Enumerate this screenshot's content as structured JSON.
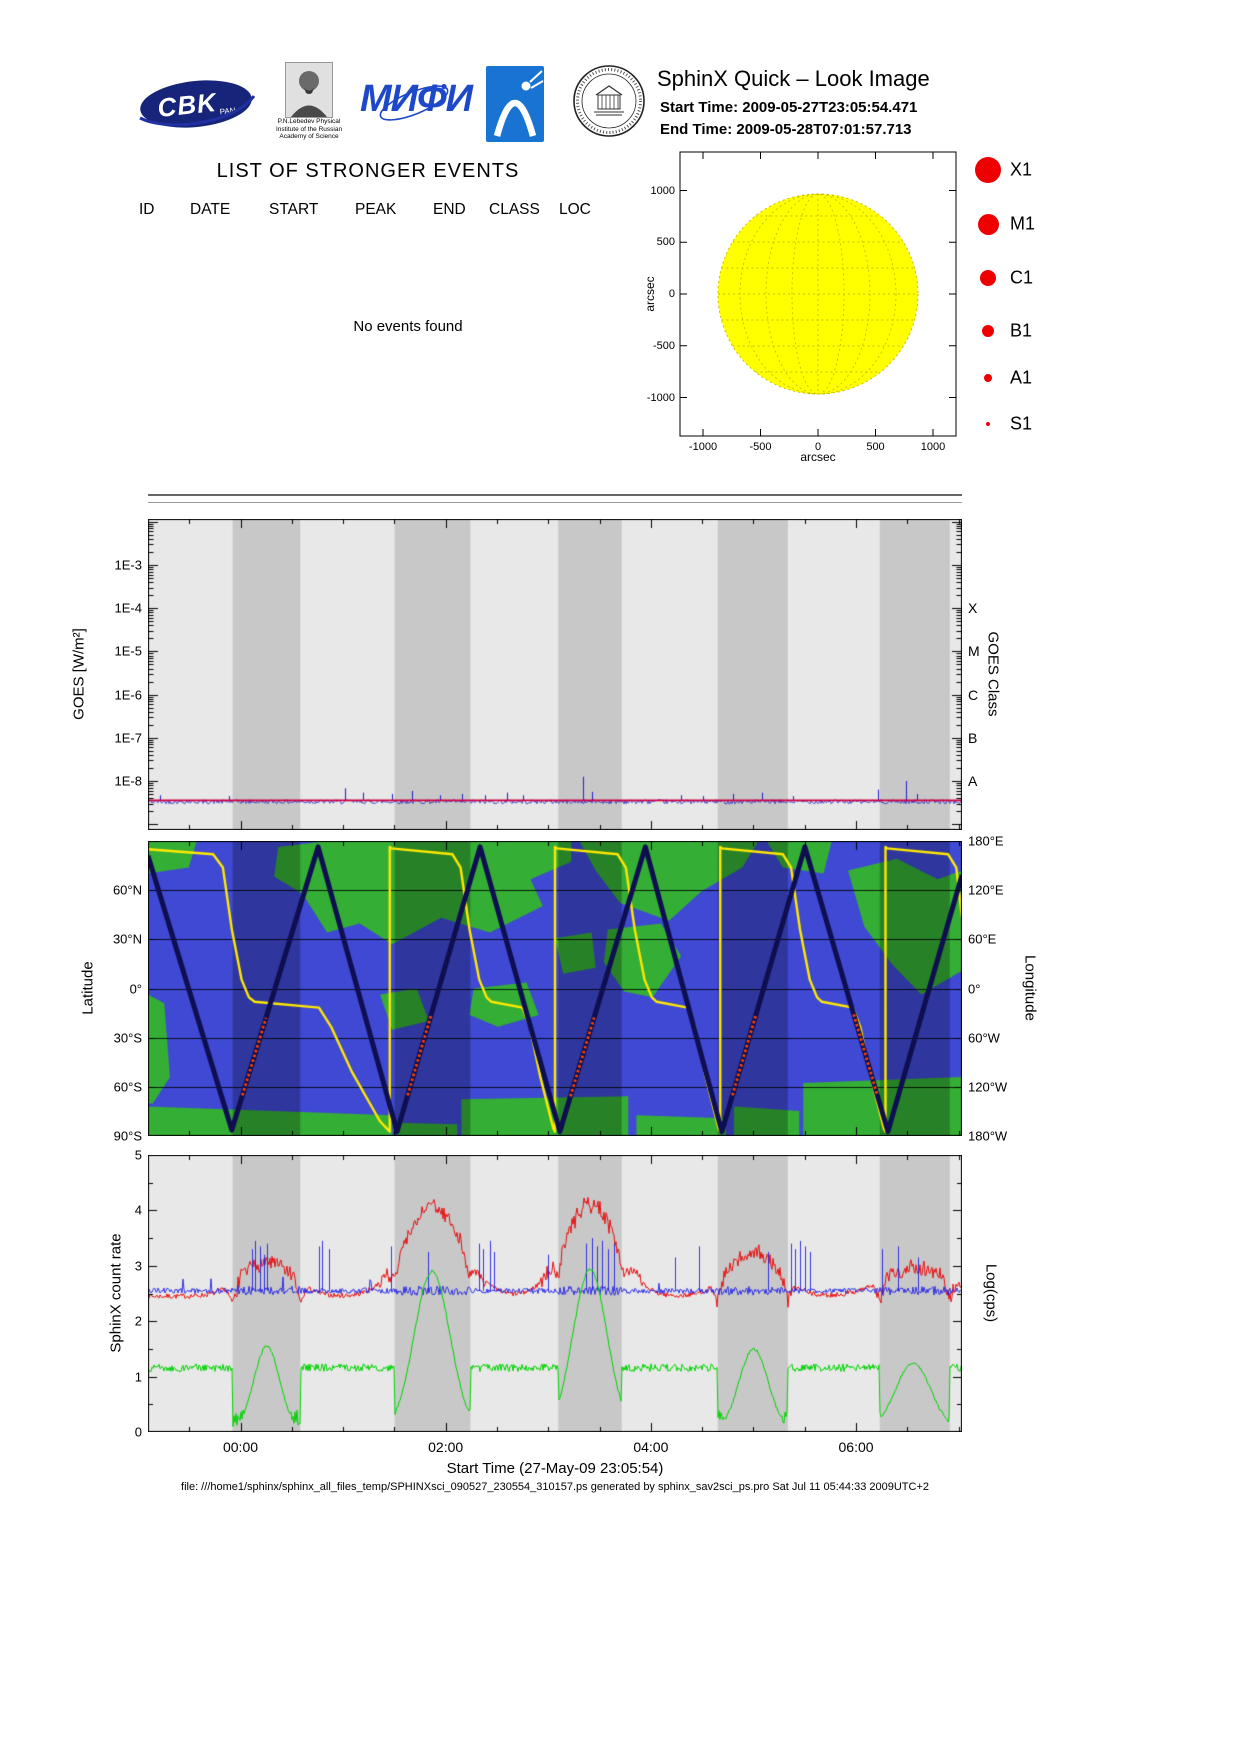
{
  "header": {
    "title": "SphinX Quick – Look Image",
    "start_time": "Start Time: 2009-05-27T23:05:54.471",
    "end_time": "End Time: 2009-05-28T07:01:57.713",
    "logos": {
      "cbk_text": "CBK",
      "cbk_sub": "PAN",
      "lebedev_caption": [
        "P.N.Lebedev Physical",
        "Institute of the Russian",
        "Academy of Science"
      ],
      "mephi_text": "МИФИ"
    }
  },
  "events": {
    "title": "LIST OF STRONGER EVENTS",
    "columns": [
      "ID",
      "DATE",
      "START",
      "PEAK",
      "END",
      "CLASS",
      "LOC"
    ],
    "empty_message": "No events found"
  },
  "sun_plot": {
    "xlabel": "arcsec",
    "ylabel": "arcsec",
    "xticks": [
      "-1000",
      "-500",
      "0",
      "500",
      "1000"
    ],
    "yticks": [
      "1000",
      "500",
      "0",
      "-500",
      "-1000"
    ],
    "disk_color": "#ffff00",
    "grid_color": "#c9bd00",
    "legend": {
      "color": "#ee0000",
      "items": [
        {
          "label": "X1",
          "r": 13
        },
        {
          "label": "M1",
          "r": 10.5
        },
        {
          "label": "C1",
          "r": 8
        },
        {
          "label": "B1",
          "r": 6
        },
        {
          "label": "A1",
          "r": 4
        },
        {
          "label": "S1",
          "r": 2.2
        }
      ]
    }
  },
  "chart_data": [
    {
      "type": "line",
      "name": "goes-flux-panel",
      "ylabel": "GOES [W/m²]",
      "ylabel_right": "GOES Class",
      "yticks": [
        "1E-3",
        "1E-4",
        "1E-5",
        "1E-6",
        "1E-7",
        "1E-8"
      ],
      "yticks_log10": [
        -3,
        -4,
        -5,
        -6,
        -7,
        -8
      ],
      "yticks_right": [
        "X",
        "M",
        "C",
        "B",
        "A"
      ],
      "yticks_right_log10": [
        -4,
        -5,
        -6,
        -7,
        -8
      ],
      "x_range_hours": [
        23.0983,
        31.0328
      ],
      "xticks_hours": [
        24,
        26,
        28,
        30
      ],
      "night_bands_frac": [
        [
          0.104,
          0.187
        ],
        [
          0.303,
          0.396
        ],
        [
          0.504,
          0.582
        ],
        [
          0.7,
          0.786
        ],
        [
          0.899,
          0.985
        ]
      ],
      "baseline_log10": -8.45,
      "series": [
        {
          "name": "goes-baseline",
          "color": "#d10040"
        },
        {
          "name": "spike-channel",
          "color": "#2a2ac8",
          "spikes": [
            [
              0.015,
              0.12
            ],
            [
              0.1,
              0.1
            ],
            [
              0.242,
              0.28
            ],
            [
              0.264,
              0.18
            ],
            [
              0.3,
              0.15
            ],
            [
              0.324,
              0.22
            ],
            [
              0.359,
              0.12
            ],
            [
              0.386,
              0.15
            ],
            [
              0.414,
              0.12
            ],
            [
              0.441,
              0.18
            ],
            [
              0.461,
              0.12
            ],
            [
              0.534,
              0.55
            ],
            [
              0.545,
              0.2
            ],
            [
              0.655,
              0.12
            ],
            [
              0.682,
              0.1
            ],
            [
              0.719,
              0.15
            ],
            [
              0.754,
              0.18
            ],
            [
              0.792,
              0.1
            ],
            [
              0.897,
              0.25
            ],
            [
              0.931,
              0.45
            ],
            [
              0.945,
              0.15
            ]
          ]
        }
      ]
    },
    {
      "type": "map-track",
      "name": "ground-track-panel",
      "ylabel": "Latitude",
      "ylabel_right": "Longitude",
      "yticks": [
        "60°N",
        "30°N",
        "0°",
        "30°S",
        "60°S",
        "90°S"
      ],
      "yticks_lat": [
        60,
        30,
        0,
        -30,
        -60,
        -90
      ],
      "yticks_right": [
        "180°E",
        "120°E",
        "60°E",
        "0°",
        "60°W",
        "120°W",
        "180°W"
      ],
      "yticks_right_lon": [
        180,
        120,
        60,
        0,
        -60,
        -120,
        -180
      ],
      "sea_color": "#2a35cf",
      "land_color": "#1fa51f",
      "track_color": "#0e0e50",
      "belt_color": "#ff4400",
      "lon_color": "#ffe800",
      "track_points": [
        [
          0,
          0.05
        ],
        [
          0.103,
          0.98
        ],
        [
          0.209,
          0.02
        ],
        [
          0.306,
          0.985
        ],
        [
          0.408,
          0.02
        ],
        [
          0.506,
          0.985
        ],
        [
          0.611,
          0.02
        ],
        [
          0.705,
          0.985
        ],
        [
          0.807,
          0.02
        ],
        [
          0.909,
          0.985
        ],
        [
          1.0,
          0.116
        ]
      ],
      "track_valleys_frac": [
        0.103,
        0.306,
        0.506,
        0.705,
        0.909
      ],
      "lon_points": [
        [
          0.0,
          0.028
        ],
        [
          0.08,
          0.045
        ],
        [
          0.092,
          0.09
        ],
        [
          0.103,
          0.3
        ],
        [
          0.115,
          0.47
        ],
        [
          0.124,
          0.53
        ],
        [
          0.131,
          0.545
        ],
        [
          0.21,
          0.565
        ],
        [
          0.225,
          0.63
        ],
        [
          0.25,
          0.78
        ],
        [
          0.285,
          0.95
        ],
        [
          0.297,
          0.985
        ],
        [
          0.297,
          0.02
        ],
        [
          0.299,
          0.025
        ],
        [
          0.374,
          0.045
        ],
        [
          0.384,
          0.09
        ],
        [
          0.395,
          0.3
        ],
        [
          0.407,
          0.47
        ],
        [
          0.416,
          0.53
        ],
        [
          0.422,
          0.545
        ],
        [
          0.46,
          0.565
        ],
        [
          0.469,
          0.63
        ],
        [
          0.482,
          0.8
        ],
        [
          0.498,
          0.975
        ],
        [
          0.5,
          0.985
        ],
        [
          0.5,
          0.02
        ],
        [
          0.502,
          0.025
        ],
        [
          0.577,
          0.045
        ],
        [
          0.587,
          0.09
        ],
        [
          0.598,
          0.3
        ],
        [
          0.61,
          0.47
        ],
        [
          0.619,
          0.53
        ],
        [
          0.625,
          0.545
        ],
        [
          0.663,
          0.565
        ],
        [
          0.672,
          0.63
        ],
        [
          0.685,
          0.8
        ],
        [
          0.701,
          0.975
        ],
        [
          0.703,
          0.985
        ],
        [
          0.703,
          0.02
        ],
        [
          0.705,
          0.025
        ],
        [
          0.78,
          0.045
        ],
        [
          0.79,
          0.09
        ],
        [
          0.801,
          0.3
        ],
        [
          0.813,
          0.47
        ],
        [
          0.822,
          0.53
        ],
        [
          0.828,
          0.545
        ],
        [
          0.866,
          0.565
        ],
        [
          0.875,
          0.63
        ],
        [
          0.888,
          0.8
        ],
        [
          0.904,
          0.975
        ],
        [
          0.906,
          0.985
        ],
        [
          0.906,
          0.02
        ],
        [
          0.908,
          0.025
        ],
        [
          0.983,
          0.045
        ],
        [
          0.993,
          0.09
        ],
        [
          1.0,
          0.26
        ]
      ],
      "land_polygons": [
        [
          [
            0.0,
            0.9
          ],
          [
            0.3,
            0.93
          ],
          [
            0.3,
            1.0
          ],
          [
            0.0,
            1.0
          ]
        ],
        [
          [
            0.305,
            0.955
          ],
          [
            0.38,
            0.96
          ],
          [
            0.38,
            1.0
          ],
          [
            0.305,
            1.0
          ]
        ],
        [
          [
            0.385,
            0.875
          ],
          [
            0.59,
            0.865
          ],
          [
            0.59,
            1.0
          ],
          [
            0.385,
            1.0
          ]
        ],
        [
          [
            0.6,
            0.93
          ],
          [
            0.71,
            0.94
          ],
          [
            0.71,
            1.0
          ],
          [
            0.6,
            1.0
          ]
        ],
        [
          [
            0.72,
            0.9
          ],
          [
            0.8,
            0.915
          ],
          [
            0.8,
            1.0
          ],
          [
            0.72,
            1.0
          ]
        ],
        [
          [
            0.805,
            0.82
          ],
          [
            1.0,
            0.8
          ],
          [
            1.0,
            1.0
          ],
          [
            0.805,
            1.0
          ]
        ],
        [
          [
            0.16,
            0.02
          ],
          [
            0.22,
            0.0
          ],
          [
            0.52,
            0.0
          ],
          [
            0.52,
            0.07
          ],
          [
            0.47,
            0.13
          ],
          [
            0.485,
            0.22
          ],
          [
            0.42,
            0.31
          ],
          [
            0.36,
            0.26
          ],
          [
            0.3,
            0.35
          ],
          [
            0.26,
            0.28
          ],
          [
            0.22,
            0.31
          ],
          [
            0.19,
            0.18
          ],
          [
            0.155,
            0.12
          ]
        ],
        [
          [
            0.53,
            0.0
          ],
          [
            0.75,
            0.0
          ],
          [
            0.73,
            0.09
          ],
          [
            0.68,
            0.17
          ],
          [
            0.64,
            0.27
          ],
          [
            0.58,
            0.21
          ],
          [
            0.55,
            0.1
          ]
        ],
        [
          [
            0.86,
            0.1
          ],
          [
            0.92,
            0.06
          ],
          [
            0.97,
            0.13
          ],
          [
            1.0,
            0.1
          ],
          [
            1.0,
            0.44
          ],
          [
            0.95,
            0.52
          ],
          [
            0.915,
            0.42
          ],
          [
            0.88,
            0.29
          ]
        ],
        [
          [
            0.565,
            0.3
          ],
          [
            0.63,
            0.28
          ],
          [
            0.655,
            0.39
          ],
          [
            0.62,
            0.53
          ],
          [
            0.585,
            0.51
          ],
          [
            0.56,
            0.41
          ]
        ],
        [
          [
            0.4,
            0.5
          ],
          [
            0.465,
            0.48
          ],
          [
            0.48,
            0.59
          ],
          [
            0.43,
            0.63
          ],
          [
            0.395,
            0.59
          ]
        ],
        [
          [
            0.285,
            0.52
          ],
          [
            0.33,
            0.5
          ],
          [
            0.345,
            0.61
          ],
          [
            0.3,
            0.64
          ]
        ],
        [
          [
            0.0,
            0.52
          ],
          [
            0.02,
            0.55
          ],
          [
            0.027,
            0.8
          ],
          [
            0.006,
            0.89
          ],
          [
            0.0,
            0.89
          ]
        ],
        [
          [
            0.0,
            0.0
          ],
          [
            0.06,
            0.0
          ],
          [
            0.05,
            0.09
          ],
          [
            0.0,
            0.11
          ]
        ],
        [
          [
            0.5,
            0.33
          ],
          [
            0.545,
            0.31
          ],
          [
            0.55,
            0.43
          ],
          [
            0.51,
            0.45
          ]
        ],
        [
          [
            0.76,
            0.0
          ],
          [
            0.84,
            0.0
          ],
          [
            0.83,
            0.11
          ],
          [
            0.78,
            0.09
          ]
        ]
      ]
    },
    {
      "type": "line",
      "name": "sphinx-count-rate-panel",
      "ylabel": "SphinX count rate",
      "ylabel_right": "Log(cps)",
      "ylim": [
        0,
        5
      ],
      "yticks": [
        "0",
        "1",
        "2",
        "3",
        "4",
        "5"
      ],
      "xlabel": "Start Time (27-May-09 23:05:54)",
      "xticks": [
        "00:00",
        "02:00",
        "04:00",
        "06:00"
      ],
      "xticks_hours": [
        24,
        26,
        28,
        30
      ],
      "x_range_hours": [
        23.0983,
        31.0328
      ],
      "series": [
        {
          "name": "high-energy",
          "color": "#e81010",
          "baseline": 2.45,
          "humps": [
            {
              "c": 0.146,
              "s": 0.03,
              "h": 0.62
            },
            {
              "c": 0.35,
              "s": 0.034,
              "h": 1.62
            },
            {
              "c": 0.544,
              "s": 0.032,
              "h": 1.66
            },
            {
              "c": 0.744,
              "s": 0.03,
              "h": 0.78
            },
            {
              "c": 0.944,
              "s": 0.04,
              "h": 0.52
            }
          ]
        },
        {
          "name": "medium-energy",
          "color": "#2020e8",
          "baseline": 2.55,
          "spikes": [
            [
              0.128,
              0.75
            ],
            [
              0.132,
              0.9
            ],
            [
              0.138,
              0.8
            ],
            [
              0.143,
              0.65
            ],
            [
              0.146,
              0.85
            ],
            [
              0.21,
              0.8
            ],
            [
              0.214,
              0.9
            ],
            [
              0.222,
              0.75
            ],
            [
              0.298,
              0.8
            ],
            [
              0.344,
              0.7
            ],
            [
              0.407,
              0.85
            ],
            [
              0.411,
              0.75
            ],
            [
              0.42,
              0.9
            ],
            [
              0.425,
              0.7
            ],
            [
              0.492,
              0.65
            ],
            [
              0.538,
              0.85
            ],
            [
              0.545,
              0.95
            ],
            [
              0.552,
              0.8
            ],
            [
              0.558,
              0.9
            ],
            [
              0.565,
              0.75
            ],
            [
              0.573,
              0.85
            ],
            [
              0.648,
              0.6
            ],
            [
              0.677,
              0.8
            ],
            [
              0.762,
              0.7
            ],
            [
              0.79,
              0.85
            ],
            [
              0.795,
              0.75
            ],
            [
              0.801,
              0.9
            ],
            [
              0.807,
              0.8
            ],
            [
              0.813,
              0.7
            ],
            [
              0.902,
              0.75
            ],
            [
              0.921,
              0.8
            ],
            [
              0.946,
              0.6
            ]
          ]
        },
        {
          "name": "low-energy",
          "color": "#00d400",
          "baseline": 1.16,
          "humps": [
            {
              "c": 0.146,
              "s": 0.016,
              "h": 1.55
            },
            {
              "c": 0.349,
              "s": 0.022,
              "h": 2.9
            },
            {
              "c": 0.543,
              "s": 0.021,
              "h": 2.93
            },
            {
              "c": 0.744,
              "s": 0.018,
              "h": 1.5
            },
            {
              "c": 0.94,
              "s": 0.022,
              "h": 1.25
            }
          ]
        }
      ]
    }
  ],
  "footer": {
    "text": "file: ///home1/sphinx/sphinx_all_files_temp/SPHINXsci_090527_230554_310157.ps generated by sphinx_sav2sci_ps.pro Sat Jul 11 05:44:33 2009UTC+2"
  }
}
